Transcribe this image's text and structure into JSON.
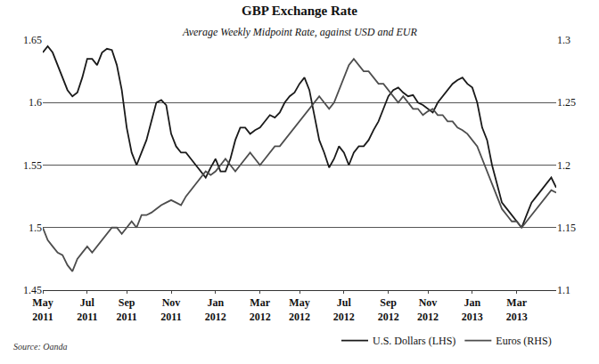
{
  "chart_data": {
    "type": "line",
    "title": "GBP Exchange Rate",
    "subtitle": "Average Weekly Midpoint Rate, against USD and EUR",
    "annotations": [
      "Source: Oanda"
    ],
    "categories": [
      "May 2011",
      null,
      null,
      null,
      null,
      null,
      null,
      null,
      null,
      "Jul 2011",
      null,
      null,
      null,
      null,
      null,
      null,
      null,
      "Sep 2011",
      null,
      null,
      null,
      null,
      null,
      null,
      null,
      null,
      "Nov 2011",
      null,
      null,
      null,
      null,
      null,
      null,
      null,
      null,
      "Jan 2012",
      null,
      null,
      null,
      null,
      null,
      null,
      null,
      null,
      "Mar 2012",
      null,
      null,
      null,
      null,
      null,
      null,
      null,
      "May 2012",
      null,
      null,
      null,
      null,
      null,
      null,
      null,
      null,
      "Jul 2012",
      null,
      null,
      null,
      null,
      null,
      null,
      null,
      null,
      "Sep 2012",
      null,
      null,
      null,
      null,
      null,
      null,
      null,
      "Nov 2012",
      null,
      null,
      null,
      null,
      null,
      null,
      null,
      null,
      "Jan 2013",
      null,
      null,
      null,
      null,
      null,
      null,
      null,
      null,
      "Mar 2013",
      null,
      null,
      null,
      null,
      null,
      null,
      null,
      null
    ],
    "series": [
      {
        "name": "U.S. Dollars (LHS)",
        "color": "#1a1a1a",
        "line_style": "solid",
        "axis": "y",
        "values": [
          1.64,
          1.645,
          1.64,
          1.63,
          1.62,
          1.61,
          1.605,
          1.608,
          1.62,
          1.635,
          1.635,
          1.63,
          1.64,
          1.643,
          1.642,
          1.63,
          1.61,
          1.58,
          1.56,
          1.55,
          1.56,
          1.57,
          1.585,
          1.6,
          1.602,
          1.598,
          1.575,
          1.565,
          1.56,
          1.56,
          1.555,
          1.55,
          1.545,
          1.54,
          1.548,
          1.555,
          1.545,
          1.545,
          1.555,
          1.57,
          1.58,
          1.58,
          1.575,
          1.578,
          1.58,
          1.585,
          1.59,
          1.588,
          1.592,
          1.6,
          1.605,
          1.608,
          1.615,
          1.62,
          1.61,
          1.59,
          1.57,
          1.56,
          1.548,
          1.555,
          1.565,
          1.56,
          1.55,
          1.56,
          1.565,
          1.565,
          1.57,
          1.578,
          1.585,
          1.595,
          1.605,
          1.61,
          1.612,
          1.608,
          1.605,
          1.606,
          1.6,
          1.598,
          1.595,
          1.592,
          1.6,
          1.605,
          1.61,
          1.615,
          1.618,
          1.62,
          1.615,
          1.612,
          1.6,
          1.58,
          1.57,
          1.55,
          1.535,
          1.52,
          1.515,
          1.51,
          1.505,
          1.5,
          1.51,
          1.52,
          1.525,
          1.53,
          1.535,
          1.54,
          1.532
        ]
      },
      {
        "name": "Euros (RHS)",
        "color": "#4d4d4d",
        "line_style": "solid",
        "axis": "y2",
        "values": [
          1.15,
          1.14,
          1.135,
          1.13,
          1.128,
          1.12,
          1.115,
          1.125,
          1.13,
          1.135,
          1.13,
          1.135,
          1.14,
          1.145,
          1.15,
          1.15,
          1.145,
          1.15,
          1.155,
          1.15,
          1.16,
          1.16,
          1.162,
          1.165,
          1.168,
          1.17,
          1.172,
          1.17,
          1.168,
          1.175,
          1.18,
          1.185,
          1.19,
          1.195,
          1.192,
          1.195,
          1.2,
          1.205,
          1.2,
          1.195,
          1.2,
          1.205,
          1.21,
          1.205,
          1.2,
          1.205,
          1.21,
          1.215,
          1.215,
          1.22,
          1.225,
          1.23,
          1.235,
          1.24,
          1.245,
          1.25,
          1.255,
          1.25,
          1.245,
          1.25,
          1.26,
          1.27,
          1.28,
          1.285,
          1.28,
          1.275,
          1.275,
          1.27,
          1.265,
          1.265,
          1.26,
          1.255,
          1.25,
          1.255,
          1.25,
          1.245,
          1.245,
          1.24,
          1.243,
          1.245,
          1.24,
          1.24,
          1.235,
          1.235,
          1.23,
          1.228,
          1.225,
          1.22,
          1.215,
          1.205,
          1.195,
          1.185,
          1.175,
          1.165,
          1.16,
          1.155,
          1.155,
          1.15,
          1.155,
          1.16,
          1.165,
          1.17,
          1.175,
          1.18,
          1.178
        ]
      }
    ],
    "ylim": [
      1.45,
      1.65
    ],
    "yticks": [
      1.45,
      1.5,
      1.55,
      1.6,
      1.65
    ],
    "y2lim": [
      1.1,
      1.3
    ],
    "y2ticks": [
      1.1,
      1.15,
      1.2,
      1.25,
      1.3
    ],
    "grid": true,
    "legend": "bottom right"
  }
}
